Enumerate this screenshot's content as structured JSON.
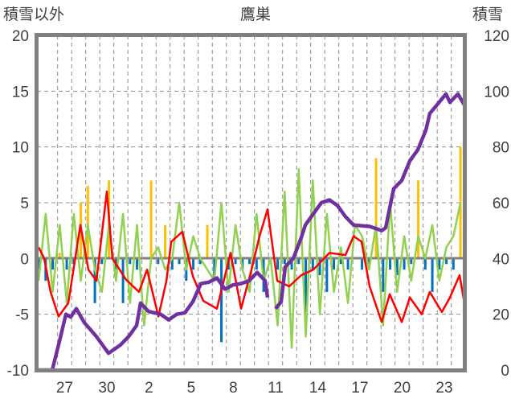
{
  "chart_data": {
    "type": "line",
    "title": "鷹巣",
    "ylabel_left": "積雪以外",
    "ylabel_right": "積雪",
    "ylim_left": [
      -10,
      20
    ],
    "ylim_right": [
      0,
      120
    ],
    "yticks_left": [
      "20",
      "15",
      "10",
      "5",
      "0",
      "-5",
      "-10"
    ],
    "yticks_right": [
      "120",
      "100",
      "80",
      "60",
      "40",
      "20",
      "0"
    ],
    "x_unit": "days since 27th 00:00",
    "xlim": [
      -1.35,
      28.93
    ],
    "xtick_labels": [
      {
        "label": "27",
        "x": 0.5
      },
      {
        "label": "30",
        "x": 3.5
      },
      {
        "label": "2",
        "x": 6.5
      },
      {
        "label": "5",
        "x": 9.5
      },
      {
        "label": "8",
        "x": 12.5
      },
      {
        "label": "11",
        "x": 15.5
      },
      {
        "label": "14",
        "x": 18.5
      },
      {
        "label": "17",
        "x": 21.5
      },
      {
        "label": "20",
        "x": 24.5
      },
      {
        "label": "23",
        "x": 27.5
      }
    ],
    "grid": {
      "vertical_every_day": true,
      "horizontal_every": 5
    },
    "colors": {
      "red": "#ff0000",
      "green": "#92d050",
      "purple": "#7030a0",
      "bar_pos": "#ffc000",
      "bar_neg": "#0070c0",
      "frame": "#808080"
    },
    "series": [
      {
        "name": "red",
        "axis": "left",
        "points": [
          [
            -1.35,
            1
          ],
          [
            -0.95,
            0
          ],
          [
            -0.5,
            -3
          ],
          [
            0.07,
            -5.2
          ],
          [
            0.76,
            -4
          ],
          [
            1.62,
            3
          ],
          [
            2.19,
            -1
          ],
          [
            2.76,
            -2
          ],
          [
            3.5,
            6
          ],
          [
            3.9,
            0
          ],
          [
            4.87,
            -1.9
          ],
          [
            5.79,
            -3
          ],
          [
            6.36,
            -1
          ],
          [
            7.17,
            -5.2
          ],
          [
            7.74,
            -2
          ],
          [
            8.08,
            1.5
          ],
          [
            8.87,
            2.4
          ],
          [
            9.62,
            -1.6
          ],
          [
            10.36,
            -3.8
          ],
          [
            11.33,
            -4.5
          ],
          [
            12.3,
            0.5
          ],
          [
            13.05,
            -4.5
          ],
          [
            13.79,
            -1
          ],
          [
            14.36,
            2
          ],
          [
            14.93,
            4.4
          ],
          [
            15.62,
            -2
          ],
          [
            16.47,
            -2.5
          ],
          [
            17.33,
            -1.5
          ],
          [
            18.19,
            -1
          ],
          [
            19.33,
            0.5
          ],
          [
            20.47,
            0.3
          ],
          [
            21.05,
            2
          ],
          [
            21.62,
            1.5
          ],
          [
            22.19,
            -2.5
          ],
          [
            23.05,
            -5.7
          ],
          [
            23.62,
            -3.2
          ],
          [
            24.48,
            -5.7
          ],
          [
            25.05,
            -3.5
          ],
          [
            25.9,
            -5
          ],
          [
            26.47,
            -3
          ],
          [
            27.33,
            -4.8
          ],
          [
            27.9,
            -3.5
          ],
          [
            28.59,
            -1.5
          ],
          [
            28.93,
            -4
          ]
        ]
      },
      {
        "name": "green",
        "axis": "left",
        "x_start": -1.35,
        "x_step": 0.5,
        "values": [
          -2,
          4,
          -3,
          3,
          -4,
          4,
          -2,
          3,
          -1,
          -3,
          3,
          -2,
          4,
          -4,
          3,
          -6,
          0,
          1,
          -1,
          0,
          5,
          -1,
          2,
          0,
          -1,
          -2,
          5,
          -3,
          3,
          -1,
          -3,
          4,
          -2,
          0,
          -6,
          6,
          -8,
          8,
          -7,
          7,
          -5,
          4,
          -3,
          1,
          -4,
          3,
          2,
          -1,
          3,
          -6,
          5,
          -3,
          2,
          -2,
          2,
          0,
          3,
          -2,
          1,
          2,
          5
        ]
      },
      {
        "name": "bars",
        "type": "bar",
        "axis": "left",
        "x_start": -1.35,
        "x_step": 0.5,
        "values": [
          -1,
          -2,
          -1,
          0.5,
          -1,
          -0.5,
          5,
          6.5,
          -4,
          -0.5,
          7,
          -1,
          -4,
          -0.5,
          -1,
          0,
          7,
          -0.5,
          3,
          -1,
          -0.5,
          -2,
          -1,
          -0.5,
          3,
          -2,
          -7.5,
          -1,
          -0.5,
          -1,
          -0.5,
          -1,
          -3,
          -0.5,
          -1,
          -0.5,
          -1,
          -0.5,
          -5,
          -1,
          -1.5,
          -3,
          -1,
          -0.5,
          -1,
          0,
          -1,
          -0.5,
          9,
          -3,
          -1,
          -1.5,
          -1,
          -0.5,
          7,
          -1,
          -3,
          -1,
          -0.5,
          -1,
          10
        ]
      },
      {
        "name": "purple",
        "axis": "right",
        "segments": [
          [
            [
              -1.35,
              0
            ],
            [
              -0.38,
              0
            ],
            [
              0.19,
              11.5
            ],
            [
              0.59,
              20
            ],
            [
              0.93,
              19
            ],
            [
              1.33,
              22
            ],
            [
              1.9,
              17
            ],
            [
              2.76,
              12
            ],
            [
              3.62,
              6
            ],
            [
              4.19,
              8
            ],
            [
              4.47,
              9
            ],
            [
              5.05,
              12
            ],
            [
              5.62,
              16
            ],
            [
              5.9,
              24
            ],
            [
              6.47,
              21
            ],
            [
              7.33,
              20
            ],
            [
              7.9,
              18
            ],
            [
              8.47,
              20
            ],
            [
              9.05,
              20.5
            ],
            [
              9.62,
              24.5
            ],
            [
              10.19,
              31
            ],
            [
              10.76,
              31.5
            ],
            [
              11.33,
              33
            ],
            [
              11.9,
              29
            ],
            [
              12.47,
              30.5
            ],
            [
              13.05,
              31
            ],
            [
              13.62,
              32
            ],
            [
              14.19,
              35
            ],
            [
              14.76,
              32
            ],
            [
              14.93,
              26
            ]
          ],
          [
            [
              15.5,
              22
            ],
            [
              15.9,
              24.5
            ],
            [
              16.19,
              37
            ],
            [
              16.76,
              40
            ],
            [
              17.33,
              47.5
            ],
            [
              17.62,
              52
            ],
            [
              18.19,
              56
            ],
            [
              18.76,
              60
            ],
            [
              19.33,
              61
            ],
            [
              19.9,
              59
            ],
            [
              20.47,
              55
            ],
            [
              21.05,
              52
            ],
            [
              22.19,
              51.5
            ],
            [
              23.05,
              50
            ],
            [
              23.33,
              51
            ],
            [
              23.9,
              65
            ],
            [
              24.48,
              68
            ],
            [
              25.05,
              75
            ],
            [
              25.62,
              79
            ],
            [
              26.19,
              86
            ],
            [
              26.47,
              92
            ],
            [
              27.05,
              95.5
            ],
            [
              27.62,
              99
            ],
            [
              27.9,
              96
            ],
            [
              28.47,
              99
            ],
            [
              28.93,
              95
            ]
          ]
        ]
      }
    ]
  }
}
